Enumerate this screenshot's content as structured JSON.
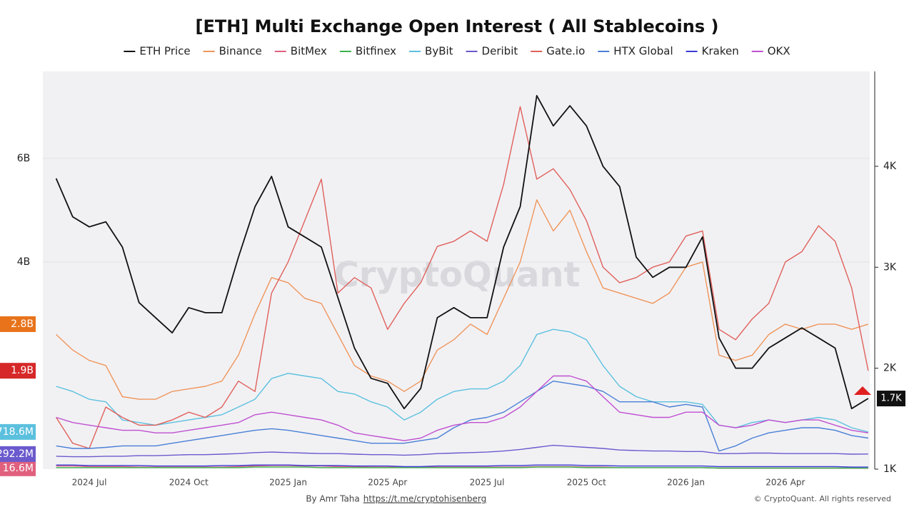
{
  "chart_data": {
    "type": "line",
    "title": "[ETH] Multi Exchange Open Interest ( All Stablecoins )",
    "watermark": "CryptoQuant",
    "footer": {
      "author": "By Amr Taha",
      "link": "https://t.me/cryptohisenberg",
      "copyright": "© CryptoQuant. All rights reserved"
    },
    "categories": [
      null,
      null,
      "2024 Jul",
      null,
      null,
      null,
      null,
      null,
      "2024 Oct",
      null,
      null,
      null,
      null,
      null,
      "2025 Jan",
      null,
      null,
      null,
      null,
      null,
      "2025 Apr",
      null,
      null,
      null,
      null,
      null,
      "2025 Jul",
      null,
      null,
      null,
      null,
      null,
      "2025 Oct",
      null,
      null,
      null,
      null,
      null,
      "2026 Jan",
      null,
      null,
      null,
      null,
      null,
      "2026 Apr",
      null,
      null,
      null,
      null,
      null
    ],
    "ylim": [
      0,
      7.68
    ],
    "yticks": [
      {
        "value": 4,
        "label": "4B"
      },
      {
        "value": 6,
        "label": "6B"
      }
    ],
    "y2lim": [
      1,
      4.94
    ],
    "y2ticks": [
      {
        "value": 1,
        "label": "1K"
      },
      {
        "value": 2,
        "label": "2K"
      },
      {
        "value": 3,
        "label": "3K"
      },
      {
        "value": 4,
        "label": "4K"
      }
    ],
    "grid": true,
    "series": [
      {
        "name": "ETH Price",
        "color": "#111111",
        "axis": "y2",
        "end_label": "1.7K",
        "values": [
          3.88,
          3.5,
          3.4,
          3.45,
          3.2,
          2.65,
          2.5,
          2.35,
          2.6,
          2.55,
          2.55,
          3.1,
          3.6,
          3.9,
          3.4,
          3.3,
          3.2,
          2.7,
          2.2,
          1.9,
          1.85,
          1.6,
          1.8,
          2.5,
          2.6,
          2.5,
          2.5,
          3.2,
          3.6,
          4.7,
          4.4,
          4.6,
          4.4,
          4.0,
          3.8,
          3.1,
          2.9,
          3.0,
          3.0,
          3.3,
          2.3,
          2.0,
          2.0,
          2.2,
          2.3,
          2.4,
          2.3,
          2.2,
          1.6,
          1.7
        ]
      },
      {
        "name": "Binance",
        "color": "#f0955a",
        "end_label": "2.8B",
        "values": [
          2.6,
          2.3,
          2.1,
          2.0,
          1.4,
          1.35,
          1.35,
          1.5,
          1.55,
          1.6,
          1.7,
          2.2,
          3.0,
          3.7,
          3.6,
          3.3,
          3.2,
          2.6,
          2.0,
          1.8,
          1.7,
          1.5,
          1.7,
          2.3,
          2.5,
          2.8,
          2.6,
          3.3,
          4.0,
          5.2,
          4.6,
          5.0,
          4.2,
          3.5,
          3.4,
          3.3,
          3.2,
          3.4,
          3.9,
          4.0,
          2.2,
          2.1,
          2.2,
          2.6,
          2.8,
          2.7,
          2.8,
          2.8,
          2.7,
          2.8
        ]
      },
      {
        "name": "BitMex",
        "color": "#e0607e",
        "end_label": "16.6M",
        "values": [
          0.06,
          0.06,
          0.05,
          0.05,
          0.05,
          0.04,
          0.04,
          0.04,
          0.04,
          0.04,
          0.04,
          0.05,
          0.06,
          0.07,
          0.07,
          0.06,
          0.06,
          0.05,
          0.05,
          0.04,
          0.04,
          0.04,
          0.04,
          0.04,
          0.04,
          0.04,
          0.04,
          0.04,
          0.04,
          0.05,
          0.05,
          0.05,
          0.04,
          0.04,
          0.03,
          0.03,
          0.03,
          0.03,
          0.03,
          0.03,
          0.02,
          0.02,
          0.02,
          0.02,
          0.02,
          0.02,
          0.02,
          0.02,
          0.02,
          0.0166
        ]
      },
      {
        "name": "Bitfinex",
        "color": "#3cb44b",
        "values": [
          0.03,
          0.03,
          0.03,
          0.03,
          0.03,
          0.03,
          0.03,
          0.03,
          0.03,
          0.03,
          0.03,
          0.03,
          0.04,
          0.04,
          0.04,
          0.04,
          0.03,
          0.03,
          0.03,
          0.03,
          0.03,
          0.03,
          0.03,
          0.03,
          0.03,
          0.03,
          0.03,
          0.03,
          0.03,
          0.04,
          0.04,
          0.04,
          0.03,
          0.03,
          0.03,
          0.03,
          0.03,
          0.03,
          0.03,
          0.03,
          0.02,
          0.02,
          0.02,
          0.02,
          0.02,
          0.02,
          0.02,
          0.02,
          0.02,
          0.02
        ]
      },
      {
        "name": "ByBit",
        "color": "#5bc0de",
        "end_label": "718.6M",
        "values": [
          1.6,
          1.5,
          1.35,
          1.3,
          0.95,
          0.9,
          0.85,
          0.9,
          0.95,
          1.0,
          1.05,
          1.2,
          1.35,
          1.75,
          1.85,
          1.8,
          1.75,
          1.5,
          1.45,
          1.3,
          1.2,
          0.95,
          1.1,
          1.35,
          1.5,
          1.55,
          1.55,
          1.7,
          2.0,
          2.6,
          2.7,
          2.65,
          2.5,
          2.0,
          1.6,
          1.4,
          1.3,
          1.3,
          1.3,
          1.25,
          0.85,
          0.8,
          0.9,
          0.95,
          0.9,
          0.95,
          1.0,
          0.95,
          0.8,
          0.7186
        ]
      },
      {
        "name": "Deribit",
        "color": "#6a5acd",
        "end_label": "292.2M",
        "values": [
          0.25,
          0.24,
          0.24,
          0.25,
          0.25,
          0.26,
          0.26,
          0.27,
          0.28,
          0.28,
          0.29,
          0.3,
          0.32,
          0.33,
          0.32,
          0.31,
          0.3,
          0.3,
          0.29,
          0.28,
          0.28,
          0.27,
          0.28,
          0.3,
          0.31,
          0.32,
          0.33,
          0.35,
          0.38,
          0.42,
          0.46,
          0.44,
          0.42,
          0.4,
          0.37,
          0.36,
          0.35,
          0.35,
          0.34,
          0.34,
          0.3,
          0.3,
          0.31,
          0.31,
          0.3,
          0.3,
          0.3,
          0.3,
          0.29,
          0.2922
        ]
      },
      {
        "name": "Gate.io",
        "color": "#e0605a",
        "end_label": "1.9B",
        "values": [
          1.0,
          0.5,
          0.4,
          1.2,
          1.0,
          0.85,
          0.85,
          0.95,
          1.1,
          1.0,
          1.2,
          1.7,
          1.5,
          3.4,
          4.0,
          4.8,
          5.6,
          3.4,
          3.7,
          3.5,
          2.7,
          3.2,
          3.6,
          4.3,
          4.4,
          4.6,
          4.4,
          5.5,
          7.0,
          5.6,
          5.8,
          5.4,
          4.8,
          3.9,
          3.6,
          3.7,
          3.9,
          4.0,
          4.5,
          4.6,
          2.7,
          2.5,
          2.9,
          3.2,
          4.0,
          4.2,
          4.7,
          4.4,
          3.5,
          1.9
        ]
      },
      {
        "name": "HTX Global",
        "color": "#4a7fd6",
        "values": [
          0.45,
          0.4,
          0.4,
          0.42,
          0.45,
          0.45,
          0.45,
          0.5,
          0.55,
          0.6,
          0.65,
          0.7,
          0.75,
          0.78,
          0.75,
          0.7,
          0.65,
          0.6,
          0.55,
          0.5,
          0.5,
          0.5,
          0.55,
          0.6,
          0.8,
          0.95,
          1.0,
          1.1,
          1.3,
          1.5,
          1.7,
          1.65,
          1.6,
          1.5,
          1.3,
          1.3,
          1.3,
          1.2,
          1.25,
          1.2,
          0.35,
          0.45,
          0.6,
          0.7,
          0.75,
          0.8,
          0.8,
          0.75,
          0.65,
          0.6
        ]
      },
      {
        "name": "Kraken",
        "color": "#3b3bd6",
        "values": [
          0.08,
          0.08,
          0.07,
          0.07,
          0.07,
          0.07,
          0.06,
          0.06,
          0.06,
          0.06,
          0.07,
          0.07,
          0.08,
          0.08,
          0.08,
          0.07,
          0.07,
          0.07,
          0.06,
          0.06,
          0.06,
          0.05,
          0.05,
          0.06,
          0.06,
          0.06,
          0.06,
          0.07,
          0.07,
          0.08,
          0.08,
          0.08,
          0.07,
          0.07,
          0.06,
          0.06,
          0.06,
          0.06,
          0.06,
          0.06,
          0.05,
          0.05,
          0.05,
          0.05,
          0.05,
          0.05,
          0.05,
          0.05,
          0.04,
          0.04
        ]
      },
      {
        "name": "OKX",
        "color": "#c050d0",
        "values": [
          1.0,
          0.9,
          0.85,
          0.8,
          0.75,
          0.75,
          0.7,
          0.7,
          0.75,
          0.8,
          0.85,
          0.9,
          1.05,
          1.1,
          1.05,
          1.0,
          0.95,
          0.85,
          0.7,
          0.65,
          0.6,
          0.55,
          0.6,
          0.75,
          0.85,
          0.9,
          0.9,
          1.0,
          1.2,
          1.5,
          1.8,
          1.8,
          1.7,
          1.4,
          1.1,
          1.05,
          1.0,
          1.0,
          1.1,
          1.1,
          0.85,
          0.8,
          0.85,
          0.95,
          0.9,
          0.95,
          0.95,
          0.85,
          0.75,
          0.7
        ]
      }
    ]
  }
}
